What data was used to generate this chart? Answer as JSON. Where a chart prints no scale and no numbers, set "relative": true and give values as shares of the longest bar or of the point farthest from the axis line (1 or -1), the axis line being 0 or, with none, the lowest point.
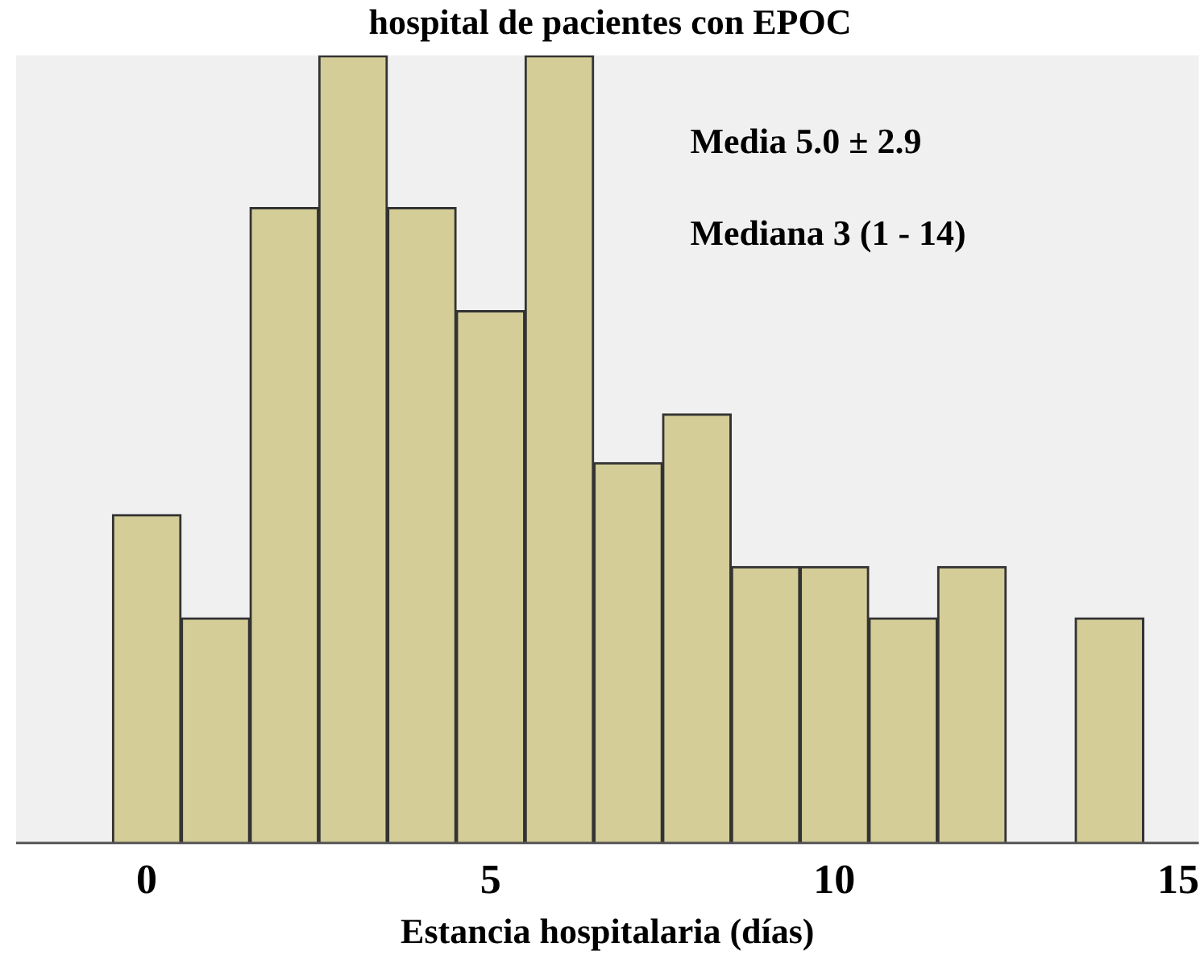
{
  "chart_data": {
    "type": "bar",
    "title": "hospital de pacientes con EPOC",
    "xlabel": "Estancia hospitalaria (días)",
    "x": [
      0,
      1,
      2,
      3,
      4,
      5,
      6,
      7,
      8,
      9,
      10,
      11,
      12,
      13,
      14
    ],
    "values": [
      0.417,
      0.286,
      0.807,
      1,
      0.807,
      0.676,
      1,
      0.483,
      0.545,
      0.351,
      0.351,
      0.286,
      0.351,
      0,
      0.286
    ],
    "relative": true,
    "color": "#d4cd98",
    "xlim": [
      -1.9,
      15.3
    ],
    "xticks": [
      0,
      5,
      10,
      15
    ],
    "grid": false,
    "legend": false,
    "annotations": [
      "Media 5.0 ± 2.9",
      "Mediana 3 (1 - 14)"
    ]
  }
}
